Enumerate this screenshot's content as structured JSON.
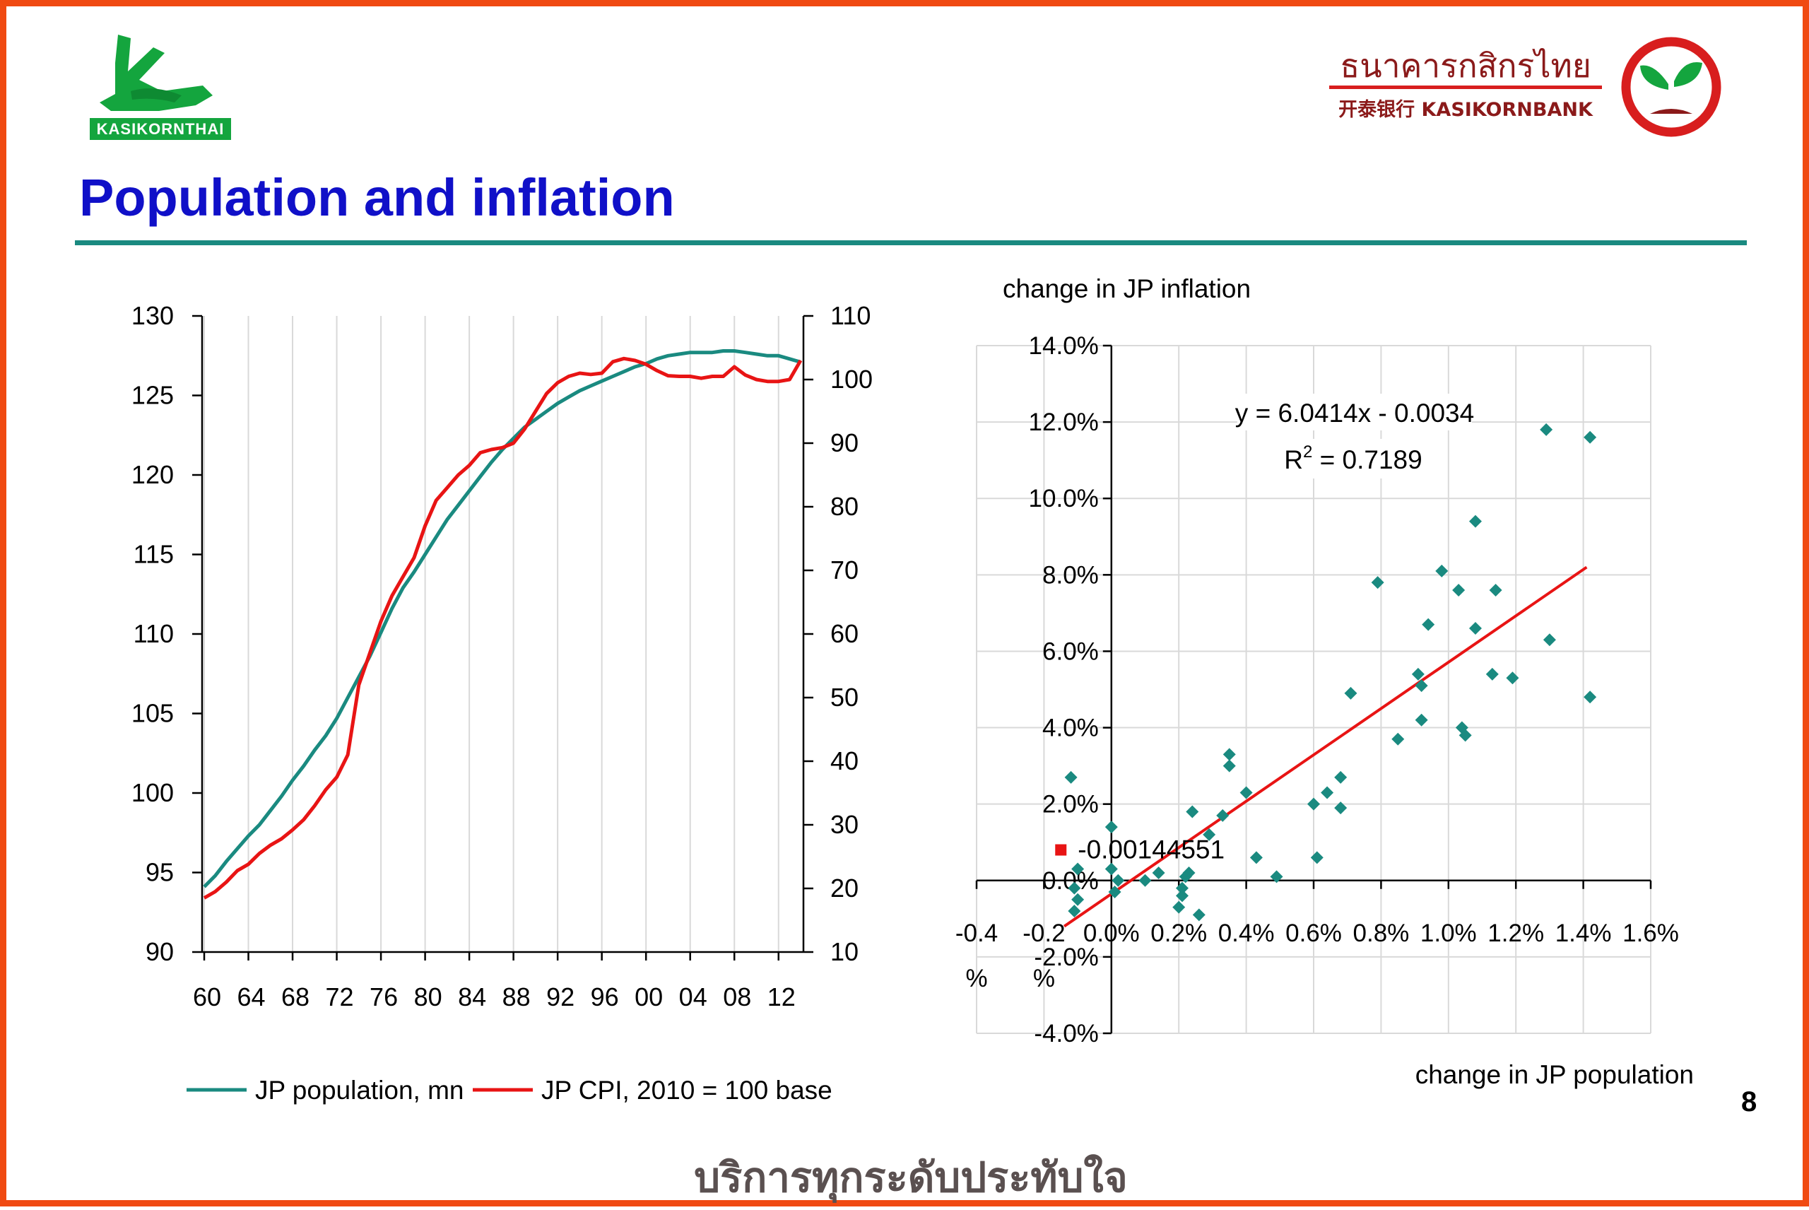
{
  "header": {
    "title": "Population and inflation",
    "logo_left_text": "KASIKORNTHAI",
    "bank_name_thai": "ธนาคารกสิกรไทย",
    "bank_name_en": "开泰银行 KASIKORNBANK"
  },
  "footer": {
    "slogan": "บริการทุกระดับประทับใจ",
    "page_number": "8"
  },
  "colors": {
    "border": "#f04a12",
    "title": "#1010c8",
    "rule": "#1a8a80",
    "population": "#1a8a80",
    "cpi": "#e81414",
    "scatter": "#1a8a80",
    "trend": "#e81414"
  },
  "chart_data": [
    {
      "type": "line",
      "x_tick_labels": [
        "60",
        "64",
        "68",
        "72",
        "76",
        "80",
        "84",
        "88",
        "92",
        "96",
        "00",
        "04",
        "08",
        "12"
      ],
      "x_years": [
        1960,
        2014
      ],
      "y_left": {
        "ylim": [
          90,
          130
        ],
        "ticks": [
          90,
          95,
          100,
          105,
          110,
          115,
          120,
          125,
          130
        ]
      },
      "y_right": {
        "ylim": [
          10,
          110
        ],
        "ticks": [
          10,
          20,
          30,
          40,
          50,
          60,
          70,
          80,
          90,
          100,
          110
        ]
      },
      "grid": true,
      "legend_position": "bottom",
      "series": [
        {
          "name": "JP population, mn",
          "axis": "left",
          "color": "#1a8a80",
          "points": [
            [
              1960,
              94.1
            ],
            [
              1961,
              94.8
            ],
            [
              1962,
              95.7
            ],
            [
              1963,
              96.5
            ],
            [
              1964,
              97.3
            ],
            [
              1965,
              98.0
            ],
            [
              1966,
              98.9
            ],
            [
              1967,
              99.8
            ],
            [
              1968,
              100.8
            ],
            [
              1969,
              101.7
            ],
            [
              1970,
              102.7
            ],
            [
              1971,
              103.6
            ],
            [
              1972,
              104.7
            ],
            [
              1973,
              106.0
            ],
            [
              1974,
              107.3
            ],
            [
              1975,
              108.6
            ],
            [
              1976,
              110.1
            ],
            [
              1977,
              111.6
            ],
            [
              1978,
              112.9
            ],
            [
              1979,
              113.9
            ],
            [
              1980,
              115.0
            ],
            [
              1981,
              116.1
            ],
            [
              1982,
              117.2
            ],
            [
              1983,
              118.1
            ],
            [
              1984,
              119.0
            ],
            [
              1985,
              119.9
            ],
            [
              1986,
              120.8
            ],
            [
              1987,
              121.6
            ],
            [
              1988,
              122.3
            ],
            [
              1989,
              123.0
            ],
            [
              1990,
              123.5
            ],
            [
              1991,
              124.0
            ],
            [
              1992,
              124.5
            ],
            [
              1993,
              124.9
            ],
            [
              1994,
              125.3
            ],
            [
              1995,
              125.6
            ],
            [
              1996,
              125.9
            ],
            [
              1997,
              126.2
            ],
            [
              1998,
              126.5
            ],
            [
              1999,
              126.8
            ],
            [
              2000,
              127.0
            ],
            [
              2001,
              127.3
            ],
            [
              2002,
              127.5
            ],
            [
              2003,
              127.6
            ],
            [
              2004,
              127.7
            ],
            [
              2005,
              127.7
            ],
            [
              2006,
              127.7
            ],
            [
              2007,
              127.8
            ],
            [
              2008,
              127.8
            ],
            [
              2009,
              127.7
            ],
            [
              2010,
              127.6
            ],
            [
              2011,
              127.5
            ],
            [
              2012,
              127.5
            ],
            [
              2013,
              127.3
            ],
            [
              2014,
              127.1
            ]
          ]
        },
        {
          "name": "JP CPI, 2010 = 100 base",
          "axis": "right",
          "color": "#e81414",
          "points": [
            [
              1960,
              18.5
            ],
            [
              1961,
              19.5
            ],
            [
              1962,
              21.0
            ],
            [
              1963,
              22.8
            ],
            [
              1964,
              23.8
            ],
            [
              1965,
              25.5
            ],
            [
              1966,
              26.8
            ],
            [
              1967,
              27.8
            ],
            [
              1968,
              29.2
            ],
            [
              1969,
              30.8
            ],
            [
              1970,
              33.0
            ],
            [
              1971,
              35.5
            ],
            [
              1972,
              37.5
            ],
            [
              1973,
              41.0
            ],
            [
              1974,
              52.0
            ],
            [
              1975,
              57.0
            ],
            [
              1976,
              62.0
            ],
            [
              1977,
              66.0
            ],
            [
              1978,
              69.0
            ],
            [
              1979,
              72.0
            ],
            [
              1980,
              77.0
            ],
            [
              1981,
              81.0
            ],
            [
              1982,
              83.0
            ],
            [
              1983,
              85.0
            ],
            [
              1984,
              86.5
            ],
            [
              1985,
              88.5
            ],
            [
              1986,
              89.0
            ],
            [
              1987,
              89.3
            ],
            [
              1988,
              90.0
            ],
            [
              1989,
              92.2
            ],
            [
              1990,
              95.0
            ],
            [
              1991,
              97.8
            ],
            [
              1992,
              99.5
            ],
            [
              1993,
              100.5
            ],
            [
              1994,
              101.0
            ],
            [
              1995,
              100.8
            ],
            [
              1996,
              101.0
            ],
            [
              1997,
              102.8
            ],
            [
              1998,
              103.3
            ],
            [
              1999,
              103.0
            ],
            [
              2000,
              102.4
            ],
            [
              2001,
              101.4
            ],
            [
              2002,
              100.6
            ],
            [
              2003,
              100.5
            ],
            [
              2004,
              100.5
            ],
            [
              2005,
              100.2
            ],
            [
              2006,
              100.5
            ],
            [
              2007,
              100.5
            ],
            [
              2008,
              102.0
            ],
            [
              2009,
              100.7
            ],
            [
              2010,
              100.0
            ],
            [
              2011,
              99.7
            ],
            [
              2012,
              99.7
            ],
            [
              2013,
              100.0
            ],
            [
              2014,
              103.0
            ]
          ]
        }
      ]
    },
    {
      "type": "scatter",
      "ylabel": "change in JP inflation",
      "xlabel": "change in JP population",
      "xlim": [
        -0.4,
        1.6
      ],
      "ylim": [
        -4.0,
        14.0
      ],
      "x_ticks": [
        -0.4,
        -0.2,
        0.0,
        0.2,
        0.4,
        0.6,
        0.8,
        1.0,
        1.2,
        1.4,
        1.6
      ],
      "x_tick_labels": [
        "-0.4",
        "-0.2",
        "0.0%",
        "0.2%",
        "0.4%",
        "0.6%",
        "0.8%",
        "1.0%",
        "1.2%",
        "1.4%",
        "1.6%"
      ],
      "x_tick_suffix_lines": [
        "%",
        "%"
      ],
      "y_ticks": [
        -4,
        -2,
        0,
        2,
        4,
        6,
        8,
        10,
        12,
        14
      ],
      "y_tick_labels": [
        "-4.0%",
        "-2.0%",
        "0.0%",
        "2.0%",
        "4.0%",
        "6.0%",
        "8.0%",
        "10.0%",
        "12.0%",
        "14.0%"
      ],
      "grid": true,
      "equation": "y = 6.0414x - 0.0034",
      "r_squared_prefix": "R",
      "r_squared_exp": "2",
      "r_squared_value": " = 0.7189",
      "highlight_label": "-0.00144551",
      "highlight_point": [
        -0.15,
        0.8
      ],
      "trendline": {
        "x": [
          -0.14,
          1.41
        ],
        "y": [
          -1.2,
          8.2
        ]
      },
      "points": [
        [
          -0.12,
          2.7
        ],
        [
          -0.1,
          0.3
        ],
        [
          -0.11,
          -0.2
        ],
        [
          -0.1,
          -0.5
        ],
        [
          -0.11,
          -0.8
        ],
        [
          0.0,
          1.4
        ],
        [
          0.0,
          0.3
        ],
        [
          0.02,
          0.0
        ],
        [
          0.01,
          -0.3
        ],
        [
          0.1,
          0.0
        ],
        [
          0.14,
          0.2
        ],
        [
          0.2,
          -0.7
        ],
        [
          0.21,
          -0.4
        ],
        [
          0.21,
          -0.2
        ],
        [
          0.22,
          0.1
        ],
        [
          0.23,
          0.2
        ],
        [
          0.24,
          1.8
        ],
        [
          0.26,
          -0.9
        ],
        [
          0.29,
          1.2
        ],
        [
          0.33,
          1.7
        ],
        [
          0.35,
          3.3
        ],
        [
          0.35,
          3.0
        ],
        [
          0.4,
          2.3
        ],
        [
          0.43,
          0.6
        ],
        [
          0.49,
          0.1
        ],
        [
          0.6,
          2.0
        ],
        [
          0.61,
          0.6
        ],
        [
          0.64,
          2.3
        ],
        [
          0.68,
          2.7
        ],
        [
          0.68,
          1.9
        ],
        [
          0.71,
          4.9
        ],
        [
          0.79,
          7.8
        ],
        [
          0.85,
          3.7
        ],
        [
          0.91,
          5.4
        ],
        [
          0.92,
          5.1
        ],
        [
          0.92,
          4.2
        ],
        [
          0.94,
          6.7
        ],
        [
          0.98,
          8.1
        ],
        [
          1.03,
          7.6
        ],
        [
          1.04,
          4.0
        ],
        [
          1.05,
          3.8
        ],
        [
          1.08,
          9.4
        ],
        [
          1.08,
          6.6
        ],
        [
          1.13,
          5.4
        ],
        [
          1.14,
          7.6
        ],
        [
          1.19,
          5.3
        ],
        [
          1.29,
          11.8
        ],
        [
          1.3,
          6.3
        ],
        [
          1.42,
          11.6
        ],
        [
          1.42,
          4.8
        ]
      ]
    }
  ]
}
